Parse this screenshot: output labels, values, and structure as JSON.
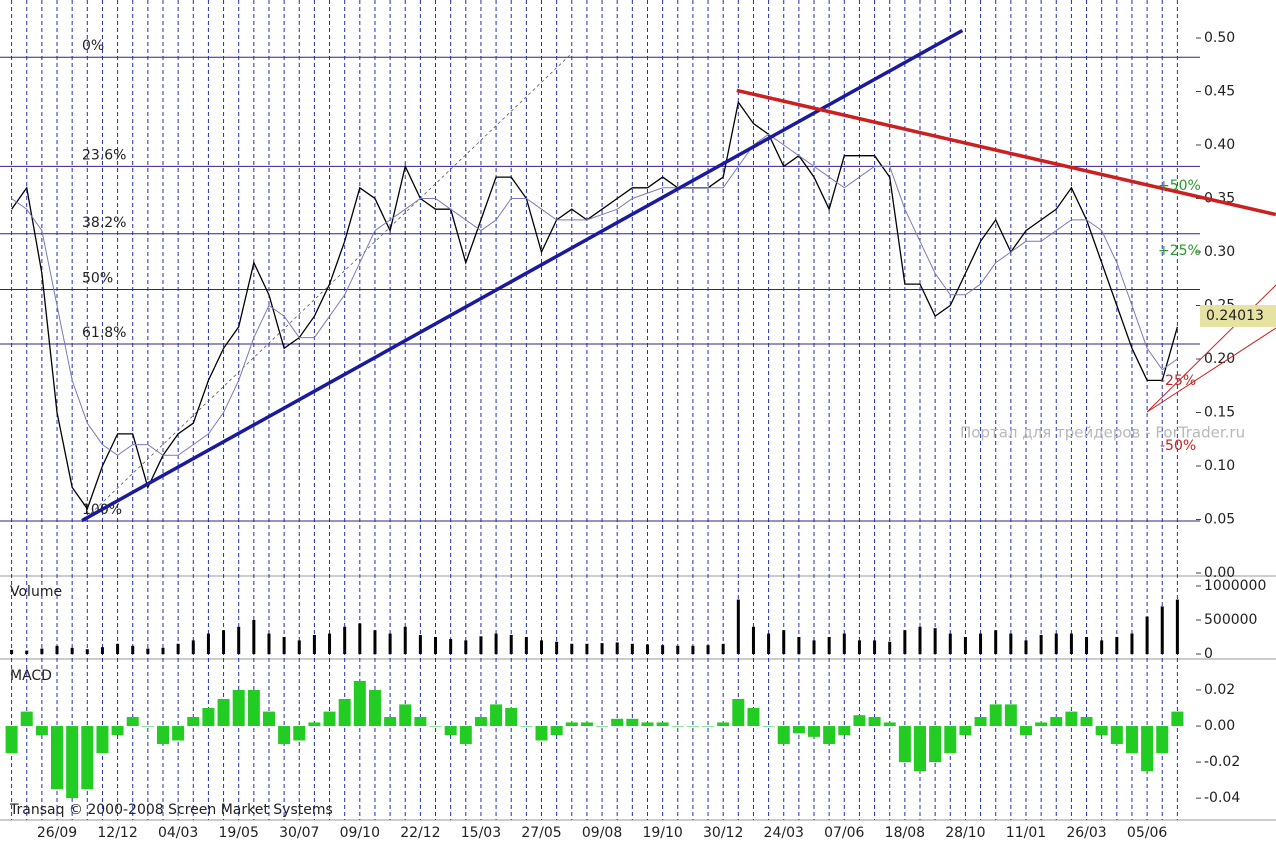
{
  "chart_data": [
    {
      "type": "line",
      "panel": "price",
      "ylim": [
        0,
        0.5355
      ],
      "yticks": [
        {
          "value": 0,
          "label": "0.00"
        },
        0.05,
        {
          "value": 0.1,
          "label": "0.10"
        },
        0.15,
        {
          "value": 0.2,
          "label": "0.20"
        },
        0.25,
        {
          "value": 0.3,
          "label": "0.30"
        },
        0.35,
        {
          "value": 0.4,
          "label": "0.40"
        },
        0.45,
        {
          "value": 0.5,
          "label": "0.50"
        }
      ],
      "series": [
        {
          "color": "#000000",
          "values": [
            0.34,
            0.36,
            0.28,
            0.15,
            0.08,
            0.06,
            0.1,
            0.13,
            0.13,
            0.08,
            0.11,
            0.13,
            0.14,
            0.18,
            0.21,
            0.23,
            0.29,
            0.26,
            0.21,
            0.22,
            0.24,
            0.27,
            0.31,
            0.36,
            0.35,
            0.32,
            0.38,
            0.35,
            0.34,
            0.34,
            0.29,
            0.33,
            0.37,
            0.37,
            0.35,
            0.3,
            0.33,
            0.34,
            0.33,
            0.34,
            0.35,
            0.36,
            0.36,
            0.37,
            0.36,
            0.36,
            0.36,
            0.37,
            0.44,
            0.42,
            0.41,
            0.38,
            0.39,
            0.37,
            0.34,
            0.39,
            0.39,
            0.39,
            0.37,
            0.27,
            0.27,
            0.24,
            0.25,
            0.28,
            0.31,
            0.33,
            0.3,
            0.32,
            0.33,
            0.34,
            0.36,
            0.33,
            0.29,
            0.25,
            0.21,
            0.18,
            0.18,
            0.23
          ]
        },
        {
          "color": "#7a7ab8",
          "values": [
            0.35,
            0.34,
            0.32,
            0.25,
            0.18,
            0.14,
            0.12,
            0.11,
            0.12,
            0.12,
            0.11,
            0.11,
            0.12,
            0.13,
            0.15,
            0.18,
            0.22,
            0.25,
            0.24,
            0.22,
            0.22,
            0.24,
            0.26,
            0.29,
            0.32,
            0.33,
            0.34,
            0.35,
            0.35,
            0.34,
            0.33,
            0.32,
            0.33,
            0.35,
            0.35,
            0.34,
            0.33,
            0.33,
            0.33,
            0.335,
            0.34,
            0.35,
            0.355,
            0.36,
            0.36,
            0.36,
            0.36,
            0.36,
            0.38,
            0.4,
            0.41,
            0.4,
            0.39,
            0.38,
            0.37,
            0.36,
            0.37,
            0.38,
            0.38,
            0.34,
            0.31,
            0.28,
            0.26,
            0.26,
            0.27,
            0.29,
            0.3,
            0.31,
            0.31,
            0.32,
            0.33,
            0.33,
            0.32,
            0.29,
            0.25,
            0.21,
            0.19,
            0.2
          ]
        }
      ],
      "levels": [
        {
          "value": 0.482,
          "label": "0%"
        },
        {
          "value": 0.38,
          "label": "23.6%"
        },
        {
          "value": 0.317,
          "label": "38.2%"
        },
        {
          "value": 0.265,
          "label": "50%"
        },
        {
          "value": 0.214,
          "label": "61.8%"
        },
        {
          "value": 0.0486,
          "label": "100%"
        }
      ],
      "trendlines": [
        {
          "color": "#1a1aa0",
          "x": [
            4.65,
            62.8
          ],
          "values": [
            0.049,
            0.507
          ]
        },
        {
          "color": "#cc2020",
          "x": [
            47.9,
            83.5
          ],
          "values": [
            0.451,
            0.335
          ]
        }
      ],
      "fan_labels": [
        "+50%",
        "+25%",
        "-25%",
        "-50%"
      ],
      "last_price": 0.24013,
      "watermark": "Портал для трейдеров - ForTrader.ru"
    },
    {
      "type": "bar",
      "panel": "volume",
      "title": "Volume",
      "color": "#000000",
      "ylim": [
        0,
        1088000
      ],
      "yticks": [
        0,
        500000,
        1000000
      ],
      "values": [
        60000,
        50000,
        80000,
        120000,
        90000,
        70000,
        100000,
        150000,
        120000,
        80000,
        90000,
        150000,
        200000,
        300000,
        350000,
        400000,
        500000,
        300000,
        250000,
        200000,
        280000,
        300000,
        400000,
        450000,
        350000,
        300000,
        400000,
        280000,
        250000,
        220000,
        200000,
        260000,
        300000,
        280000,
        250000,
        200000,
        180000,
        150000,
        150000,
        160000,
        170000,
        150000,
        140000,
        130000,
        120000,
        120000,
        130000,
        150000,
        800000,
        400000,
        300000,
        350000,
        250000,
        200000,
        250000,
        300000,
        200000,
        200000,
        180000,
        350000,
        400000,
        380000,
        300000,
        250000,
        300000,
        350000,
        300000,
        200000,
        280000,
        300000,
        300000,
        250000,
        200000,
        250000,
        300000,
        550000,
        700000,
        800000
      ]
    },
    {
      "type": "bar",
      "panel": "macd",
      "title": "MACD",
      "color": "#22cc22",
      "ylim": [
        -0.051,
        0.0344
      ],
      "yticks": [
        -0.04,
        -0.02,
        {
          "value": 0,
          "label": "0.00"
        },
        0.02
      ],
      "values": [
        -0.015,
        0.008,
        -0.005,
        -0.035,
        -0.04,
        -0.035,
        -0.015,
        -0.005,
        0.005,
        0.0,
        -0.01,
        -0.008,
        0.005,
        0.01,
        0.015,
        0.02,
        0.02,
        0.008,
        -0.01,
        -0.008,
        0.002,
        0.008,
        0.015,
        0.025,
        0.02,
        0.005,
        0.012,
        0.005,
        0.0,
        -0.005,
        -0.01,
        0.005,
        0.012,
        0.01,
        0.0,
        -0.008,
        -0.005,
        0.002,
        0.002,
        0.0,
        0.004,
        0.004,
        0.002,
        0.002,
        0.0,
        0.0,
        0.0,
        0.002,
        0.015,
        0.01,
        0.0,
        -0.01,
        -0.004,
        -0.006,
        -0.01,
        -0.005,
        0.006,
        0.005,
        0.002,
        -0.02,
        -0.025,
        -0.02,
        -0.015,
        -0.005,
        0.005,
        0.012,
        0.012,
        -0.005,
        0.002,
        0.005,
        0.008,
        0.005,
        -0.005,
        -0.01,
        -0.015,
        -0.025,
        -0.015,
        0.008
      ],
      "categories": [
        null,
        null,
        null,
        "26/09",
        null,
        null,
        null,
        "12/12",
        null,
        null,
        null,
        "04/03",
        null,
        null,
        null,
        "19/05",
        null,
        null,
        null,
        "30/07",
        null,
        null,
        null,
        "09/10",
        null,
        null,
        null,
        "22/12",
        null,
        null,
        null,
        "15/03",
        null,
        null,
        null,
        "27/05",
        null,
        null,
        null,
        "09/08",
        null,
        null,
        null,
        "19/10",
        null,
        null,
        null,
        "30/12",
        null,
        null,
        null,
        "24/03",
        null,
        null,
        null,
        "07/06",
        null,
        null,
        null,
        "18/08",
        null,
        null,
        null,
        "28/10",
        null,
        null,
        null,
        "11/01",
        null,
        null,
        null,
        "26/03",
        null,
        null,
        null,
        "05/06",
        null,
        null
      ],
      "copyright": "Transaq © 2000-2008 Screen Market Systems"
    }
  ]
}
